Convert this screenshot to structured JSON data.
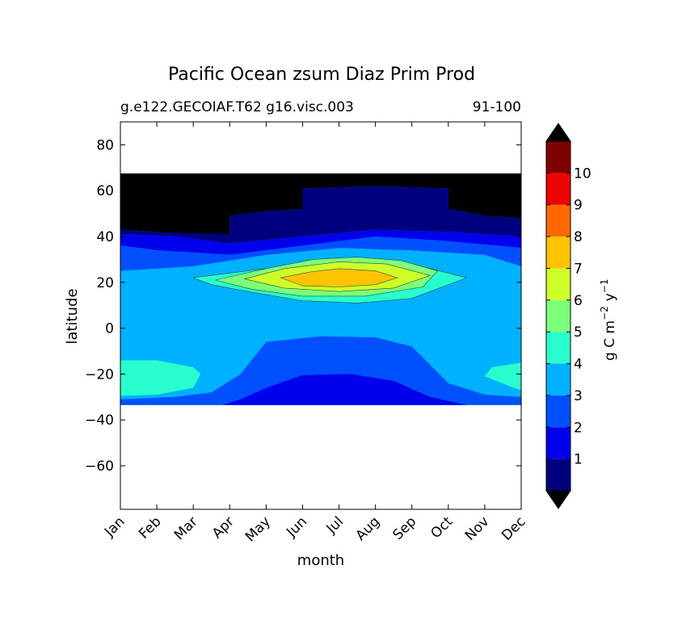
{
  "chart_data": {
    "type": "contour",
    "title": "Pacific Ocean zsum Diaz Prim Prod",
    "subtitle_left": "g.e122.GECOIAF.T62 g16.visc.003",
    "subtitle_right": "91-100",
    "xlabel": "month",
    "ylabel": "latitude",
    "x_categories": [
      "Jan",
      "Feb",
      "Mar",
      "Apr",
      "May",
      "Jun",
      "Jul",
      "Aug",
      "Sep",
      "Oct",
      "Nov",
      "Dec"
    ],
    "y_ticks": [
      80,
      60,
      40,
      20,
      0,
      -20,
      -40,
      -60
    ],
    "ylim": [
      -79,
      90
    ],
    "grid": false,
    "colorbar": {
      "label": "g C m^-2 y^-1",
      "label_main": "g C m",
      "label_exp1": "−2",
      "label_mid": "y",
      "label_exp2": "−1",
      "ticks": [
        "1",
        "2",
        "3",
        "4",
        "5",
        "6",
        "7",
        "8",
        "9",
        "10"
      ],
      "levels": [
        0,
        1,
        2,
        3,
        4,
        5,
        6,
        7,
        8,
        9,
        10,
        11
      ],
      "colors": [
        "#00007f",
        "#0000ed",
        "#0050ff",
        "#00b1ff",
        "#29ffce",
        "#7dff7a",
        "#ceff29",
        "#ffc400",
        "#ff6800",
        "#ed0400",
        "#7f0000"
      ],
      "extend": "both",
      "under_color": "#000000",
      "over_color": "#000000"
    },
    "data_extent": {
      "lat_min": -33.5,
      "lat_max": 67.5,
      "land_color": "#000000"
    },
    "contours": [
      {
        "level": 1,
        "color": "#00007f",
        "points": [
          [
            0,
            43
          ],
          [
            1,
            42
          ],
          [
            2,
            41.5
          ],
          [
            3,
            41
          ],
          [
            4,
            44
          ],
          [
            5,
            46
          ],
          [
            6,
            49
          ],
          [
            7,
            49
          ],
          [
            8,
            48
          ],
          [
            9,
            46
          ],
          [
            10,
            44
          ],
          [
            11,
            43
          ]
        ]
      },
      {
        "level": 2,
        "color": "#0000ed",
        "points": []
      },
      {
        "level": 3,
        "color": "#0050ff",
        "points": []
      },
      {
        "level": 4,
        "color": "#00b1ff",
        "points": []
      },
      {
        "level": 5,
        "color": "#29ffce",
        "points": [
          [
            2.0,
            22
          ],
          [
            3.5,
            25
          ],
          [
            5.0,
            28
          ],
          [
            6.5,
            30
          ],
          [
            8.0,
            28
          ],
          [
            9.5,
            22
          ],
          [
            8.0,
            13
          ],
          [
            6.5,
            11
          ],
          [
            5.0,
            12
          ],
          [
            3.5,
            16
          ],
          [
            2.5,
            19
          ]
        ]
      },
      {
        "level": 6,
        "color": "#7dff7a",
        "points": [
          [
            2.6,
            21
          ],
          [
            4.0,
            26
          ],
          [
            5.3,
            30
          ],
          [
            6.5,
            31
          ],
          [
            7.7,
            29.5
          ],
          [
            8.7,
            25
          ],
          [
            8.3,
            18
          ],
          [
            6.7,
            14
          ],
          [
            5.0,
            14
          ],
          [
            3.6,
            17
          ]
        ]
      },
      {
        "level": 7,
        "color": "#ceff29",
        "points": [
          [
            3.4,
            21.5
          ],
          [
            4.5,
            26
          ],
          [
            6.0,
            29
          ],
          [
            7.3,
            28
          ],
          [
            8.5,
            23
          ],
          [
            7.5,
            17.5
          ],
          [
            6.0,
            16
          ],
          [
            4.5,
            17.5
          ]
        ]
      },
      {
        "level": 8,
        "color": "#ffc400",
        "points": [
          [
            4.4,
            22
          ],
          [
            5.2,
            24.5
          ],
          [
            6.0,
            26
          ],
          [
            7.0,
            25
          ],
          [
            7.6,
            22
          ],
          [
            7.0,
            19
          ],
          [
            6.0,
            18
          ],
          [
            5.0,
            18.5
          ]
        ]
      }
    ],
    "filled_regions": [
      {
        "name": "land-north",
        "color": "#000000",
        "points": [
          [
            0,
            67.5
          ],
          [
            11,
            67.5
          ],
          [
            11,
            48
          ],
          [
            10,
            49
          ],
          [
            9,
            52
          ],
          [
            9,
            61
          ],
          [
            7,
            62
          ],
          [
            5,
            61
          ],
          [
            5,
            52
          ],
          [
            4,
            51
          ],
          [
            3,
            49
          ],
          [
            3,
            41
          ],
          [
            2,
            41
          ],
          [
            1,
            42
          ],
          [
            0,
            43
          ]
        ]
      },
      {
        "name": "band-1-north",
        "color": "#00007f",
        "points": [
          [
            0,
            43
          ],
          [
            1,
            42
          ],
          [
            2,
            41.5
          ],
          [
            3,
            41
          ],
          [
            3,
            49
          ],
          [
            4,
            51
          ],
          [
            5,
            52
          ],
          [
            5,
            61
          ],
          [
            7,
            62
          ],
          [
            9,
            61
          ],
          [
            9,
            52
          ],
          [
            10,
            49
          ],
          [
            11,
            48
          ],
          [
            11,
            40
          ],
          [
            9,
            42
          ],
          [
            7,
            43
          ],
          [
            5,
            40
          ],
          [
            3,
            37
          ],
          [
            1.5,
            40
          ],
          [
            0,
            41
          ]
        ]
      },
      {
        "name": "band-2-north",
        "color": "#0000ed",
        "points": [
          [
            0,
            41
          ],
          [
            1.5,
            40
          ],
          [
            3,
            37
          ],
          [
            5,
            40
          ],
          [
            7,
            43
          ],
          [
            9,
            42
          ],
          [
            11,
            40
          ],
          [
            11,
            35
          ],
          [
            9,
            38
          ],
          [
            7,
            40
          ],
          [
            5,
            36
          ],
          [
            3,
            32
          ],
          [
            1,
            34
          ],
          [
            0,
            36
          ]
        ]
      },
      {
        "name": "band-3-north",
        "color": "#0050ff",
        "points": [
          [
            0,
            36
          ],
          [
            1,
            34
          ],
          [
            3,
            32
          ],
          [
            5,
            36
          ],
          [
            7,
            40
          ],
          [
            9,
            38
          ],
          [
            11,
            35
          ],
          [
            11,
            27
          ],
          [
            10,
            32
          ],
          [
            8,
            34
          ],
          [
            6,
            35
          ],
          [
            4,
            32
          ],
          [
            2,
            27
          ],
          [
            0,
            25
          ]
        ]
      },
      {
        "name": "band-3-south",
        "color": "#0050ff",
        "points": [
          [
            0,
            -33.5
          ],
          [
            11,
            -33.5
          ],
          [
            11,
            -30
          ],
          [
            10,
            -29
          ],
          [
            9,
            -24
          ],
          [
            8,
            -8
          ],
          [
            7,
            -4
          ],
          [
            5.5,
            -3.5
          ],
          [
            4,
            -6
          ],
          [
            3.3,
            -20
          ],
          [
            2.5,
            -28
          ],
          [
            1.5,
            -30
          ],
          [
            0,
            -31
          ]
        ]
      },
      {
        "name": "band-2-south",
        "color": "#0000ed",
        "points": [
          [
            2.8,
            -33.5
          ],
          [
            9.5,
            -33.5
          ],
          [
            8.5,
            -30
          ],
          [
            7.5,
            -23
          ],
          [
            6.3,
            -20
          ],
          [
            5,
            -20.5
          ],
          [
            4,
            -26
          ],
          [
            3.3,
            -31
          ]
        ]
      },
      {
        "name": "band-4-south-west",
        "color": "#29ffce",
        "points": [
          [
            0,
            -14
          ],
          [
            1.0,
            -14
          ],
          [
            2.0,
            -17
          ],
          [
            2.2,
            -20
          ],
          [
            2.0,
            -26
          ],
          [
            1.0,
            -29
          ],
          [
            0,
            -29.5
          ]
        ]
      },
      {
        "name": "band-4-south-east",
        "color": "#29ffce",
        "points": [
          [
            11,
            -15
          ],
          [
            10.2,
            -17
          ],
          [
            10.0,
            -21
          ],
          [
            10.8,
            -26
          ],
          [
            11,
            -27
          ]
        ]
      }
    ]
  }
}
